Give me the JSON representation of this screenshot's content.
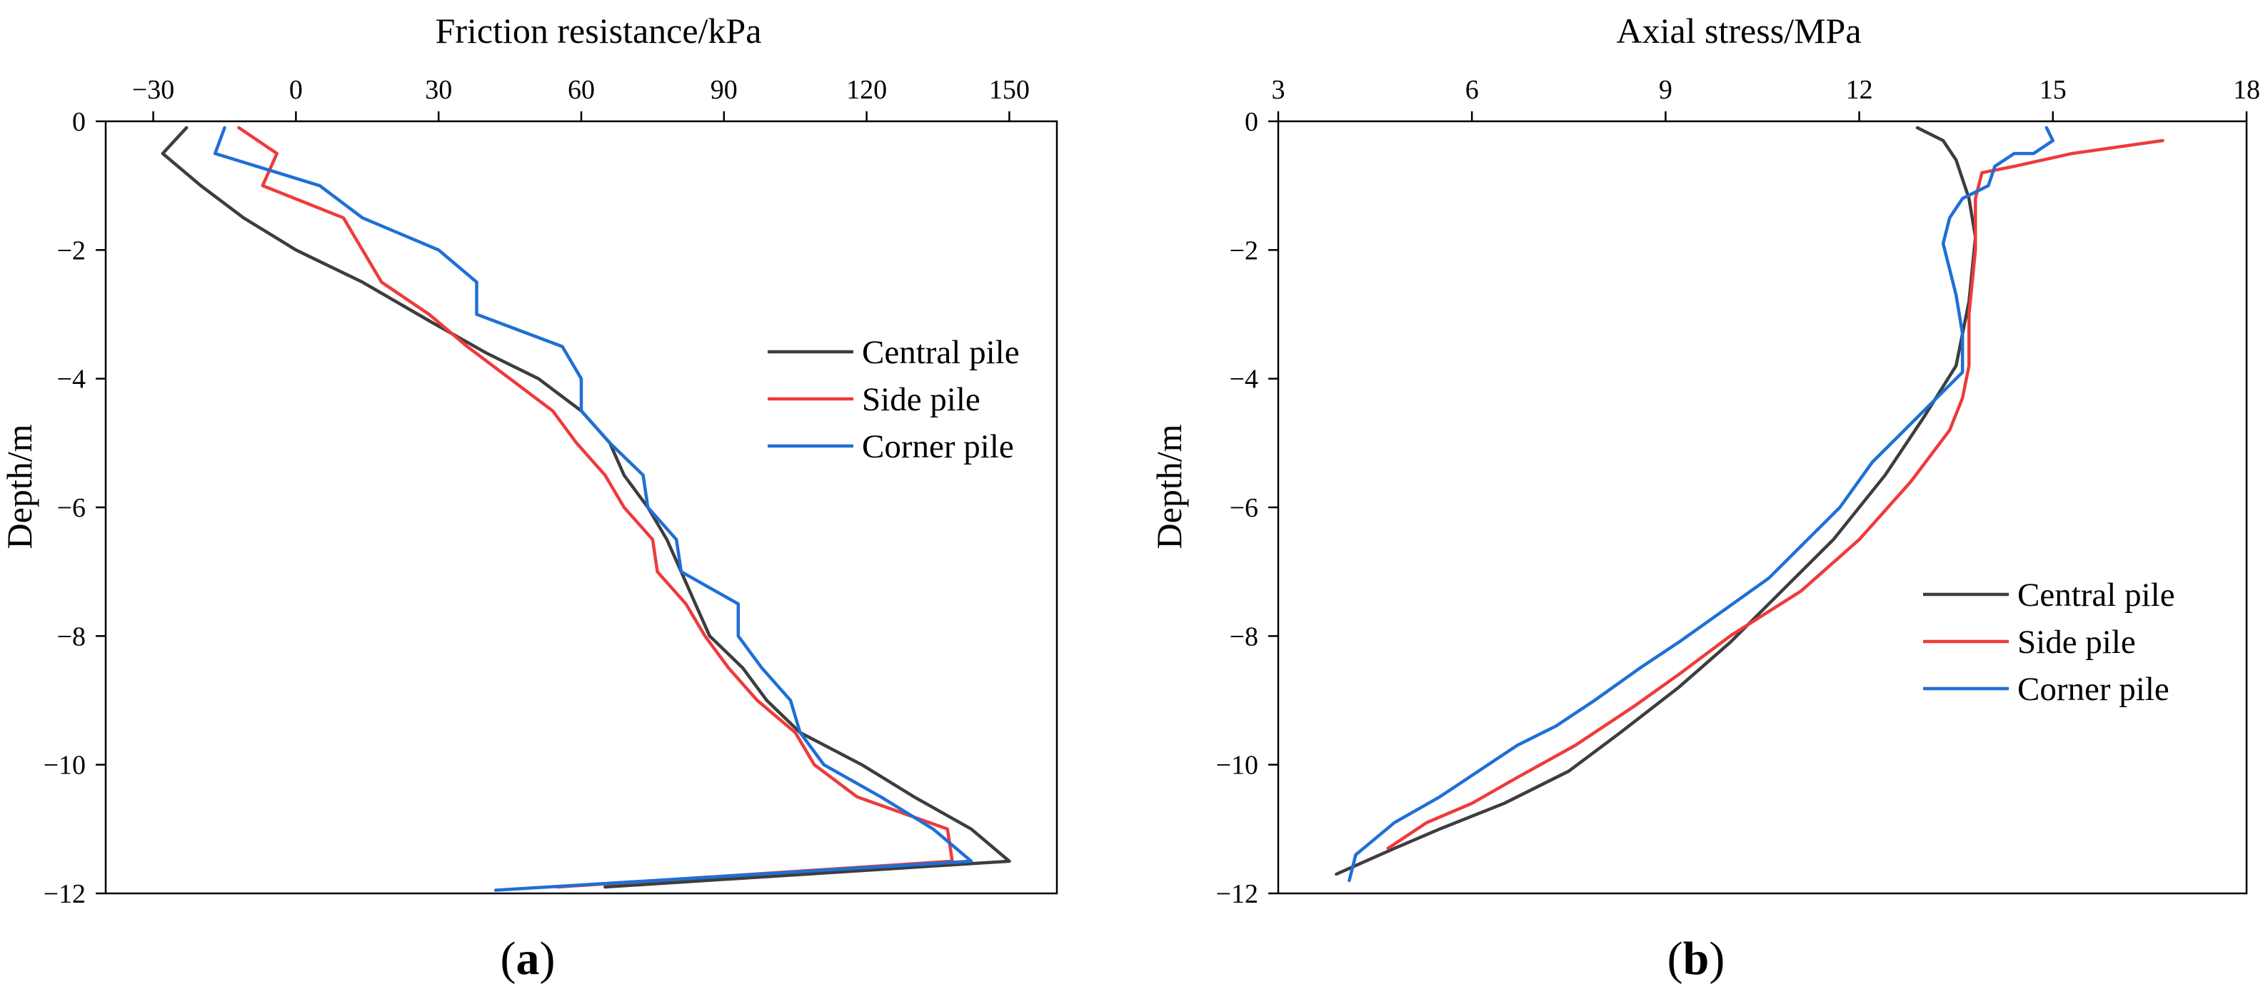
{
  "chart_data": [
    {
      "type": "line",
      "panel_label": "a",
      "title": "",
      "xlabel": "Friction resistance/kPa",
      "ylabel": "Depth/m",
      "xlim": [
        -40,
        160
      ],
      "ylim": [
        -12,
        0
      ],
      "xticks": [
        -30,
        0,
        30,
        60,
        90,
        120,
        150
      ],
      "yticks": [
        0,
        -2,
        -4,
        -6,
        -8,
        -10,
        -12
      ],
      "x_axis_position": "top",
      "legend_position": "right-middle",
      "grid": false,
      "series": [
        {
          "name": "Central pile",
          "color": "#3d3d3d",
          "points": [
            [
              -23,
              -0.1
            ],
            [
              -28,
              -0.5
            ],
            [
              -20,
              -1.0
            ],
            [
              -11,
              -1.5
            ],
            [
              0,
              -2.0
            ],
            [
              14,
              -2.5
            ],
            [
              28,
              -3.1
            ],
            [
              40,
              -3.6
            ],
            [
              51,
              -4.0
            ],
            [
              60,
              -4.5
            ],
            [
              66,
              -5.0
            ],
            [
              69,
              -5.5
            ],
            [
              74,
              -6.0
            ],
            [
              78,
              -6.5
            ],
            [
              81,
              -7.0
            ],
            [
              84,
              -7.5
            ],
            [
              87,
              -8.0
            ],
            [
              94,
              -8.5
            ],
            [
              99,
              -9.0
            ],
            [
              106,
              -9.5
            ],
            [
              119,
              -10.0
            ],
            [
              130,
              -10.5
            ],
            [
              142,
              -11.0
            ],
            [
              150,
              -11.5
            ],
            [
              65,
              -11.9
            ]
          ]
        },
        {
          "name": "Side pile",
          "color": "#ee3b3b",
          "points": [
            [
              -12,
              -0.1
            ],
            [
              -4,
              -0.5
            ],
            [
              -7,
              -1.0
            ],
            [
              10,
              -1.5
            ],
            [
              14,
              -2.0
            ],
            [
              18,
              -2.5
            ],
            [
              28,
              -3.0
            ],
            [
              36,
              -3.5
            ],
            [
              45,
              -4.0
            ],
            [
              54,
              -4.5
            ],
            [
              59,
              -5.0
            ],
            [
              65,
              -5.5
            ],
            [
              69,
              -6.0
            ],
            [
              75,
              -6.5
            ],
            [
              76,
              -7.0
            ],
            [
              82,
              -7.5
            ],
            [
              86,
              -8.0
            ],
            [
              91,
              -8.5
            ],
            [
              97,
              -9.0
            ],
            [
              105,
              -9.5
            ],
            [
              109,
              -10.0
            ],
            [
              118,
              -10.5
            ],
            [
              137,
              -11.0
            ],
            [
              138,
              -11.5
            ],
            [
              55,
              -11.9
            ]
          ]
        },
        {
          "name": "Corner pile",
          "color": "#1f6fd6",
          "points": [
            [
              -15,
              -0.1
            ],
            [
              -17,
              -0.5
            ],
            [
              5,
              -1.0
            ],
            [
              14,
              -1.5
            ],
            [
              30,
              -2.0
            ],
            [
              38,
              -2.5
            ],
            [
              38,
              -3.0
            ],
            [
              56,
              -3.5
            ],
            [
              60,
              -4.0
            ],
            [
              60,
              -4.5
            ],
            [
              66,
              -5.0
            ],
            [
              73,
              -5.5
            ],
            [
              74,
              -6.0
            ],
            [
              80,
              -6.5
            ],
            [
              81,
              -7.0
            ],
            [
              93,
              -7.5
            ],
            [
              93,
              -8.0
            ],
            [
              98,
              -8.5
            ],
            [
              104,
              -9.0
            ],
            [
              106,
              -9.5
            ],
            [
              111,
              -10.0
            ],
            [
              123,
              -10.5
            ],
            [
              134,
              -11.0
            ],
            [
              142,
              -11.5
            ],
            [
              42,
              -11.95
            ]
          ]
        }
      ]
    },
    {
      "type": "line",
      "panel_label": "b",
      "title": "",
      "xlabel": "Axial stress/MPa",
      "ylabel": "Depth/m",
      "xlim": [
        3,
        18
      ],
      "ylim": [
        -12,
        0
      ],
      "xticks": [
        3,
        6,
        9,
        12,
        15,
        18
      ],
      "yticks": [
        0,
        -2,
        -4,
        -6,
        -8,
        -10,
        -12
      ],
      "x_axis_position": "top",
      "legend_position": "right-lower",
      "grid": false,
      "series": [
        {
          "name": "Central pile",
          "color": "#3d3d3d",
          "points": [
            [
              12.9,
              -0.1
            ],
            [
              13.3,
              -0.3
            ],
            [
              13.5,
              -0.6
            ],
            [
              13.7,
              -1.2
            ],
            [
              13.8,
              -1.8
            ],
            [
              13.7,
              -2.8
            ],
            [
              13.5,
              -3.8
            ],
            [
              13.0,
              -4.6
            ],
            [
              12.4,
              -5.5
            ],
            [
              11.6,
              -6.5
            ],
            [
              10.8,
              -7.3
            ],
            [
              10.0,
              -8.1
            ],
            [
              9.2,
              -8.8
            ],
            [
              8.3,
              -9.5
            ],
            [
              7.5,
              -10.1
            ],
            [
              6.5,
              -10.6
            ],
            [
              5.5,
              -11.0
            ],
            [
              4.8,
              -11.3
            ],
            [
              3.9,
              -11.7
            ]
          ]
        },
        {
          "name": "Side pile",
          "color": "#ee3b3b",
          "points": [
            [
              16.7,
              -0.3
            ],
            [
              15.3,
              -0.5
            ],
            [
              14.4,
              -0.7
            ],
            [
              13.9,
              -0.8
            ],
            [
              13.8,
              -1.2
            ],
            [
              13.8,
              -2.0
            ],
            [
              13.7,
              -3.0
            ],
            [
              13.7,
              -3.8
            ],
            [
              13.6,
              -4.3
            ],
            [
              13.4,
              -4.8
            ],
            [
              12.8,
              -5.6
            ],
            [
              12.0,
              -6.5
            ],
            [
              11.1,
              -7.3
            ],
            [
              10.0,
              -8.0
            ],
            [
              9.2,
              -8.6
            ],
            [
              8.5,
              -9.1
            ],
            [
              7.6,
              -9.7
            ],
            [
              6.7,
              -10.2
            ],
            [
              6.0,
              -10.6
            ],
            [
              5.3,
              -10.9
            ],
            [
              4.7,
              -11.3
            ]
          ]
        },
        {
          "name": "Corner pile",
          "color": "#1f6fd6",
          "points": [
            [
              14.9,
              -0.1
            ],
            [
              15.0,
              -0.3
            ],
            [
              14.7,
              -0.5
            ],
            [
              14.4,
              -0.5
            ],
            [
              14.1,
              -0.7
            ],
            [
              14.0,
              -1.0
            ],
            [
              13.6,
              -1.2
            ],
            [
              13.4,
              -1.5
            ],
            [
              13.3,
              -1.9
            ],
            [
              13.4,
              -2.3
            ],
            [
              13.5,
              -2.7
            ],
            [
              13.6,
              -3.3
            ],
            [
              13.6,
              -3.9
            ],
            [
              13.2,
              -4.3
            ],
            [
              12.7,
              -4.8
            ],
            [
              12.2,
              -5.3
            ],
            [
              11.7,
              -6.0
            ],
            [
              11.1,
              -6.6
            ],
            [
              10.6,
              -7.1
            ],
            [
              9.9,
              -7.6
            ],
            [
              9.2,
              -8.1
            ],
            [
              8.6,
              -8.5
            ],
            [
              7.9,
              -9.0
            ],
            [
              7.3,
              -9.4
            ],
            [
              6.7,
              -9.7
            ],
            [
              6.1,
              -10.1
            ],
            [
              5.5,
              -10.5
            ],
            [
              4.8,
              -10.9
            ],
            [
              4.2,
              -11.4
            ],
            [
              4.1,
              -11.8
            ]
          ]
        }
      ]
    }
  ]
}
